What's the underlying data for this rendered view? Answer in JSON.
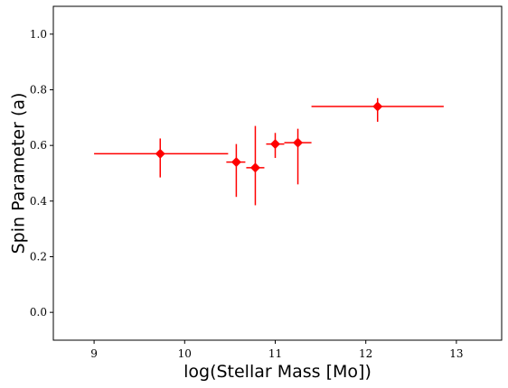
{
  "chart_data": {
    "type": "scatter",
    "title": "",
    "xlabel": "log(Stellar Mass [Mo])",
    "ylabel": "Spin Parameter (a)",
    "xlim": [
      8.55,
      13.5
    ],
    "ylim": [
      -0.1,
      1.1
    ],
    "x_ticks": [
      9,
      10,
      11,
      12,
      13
    ],
    "y_ticks": [
      0.0,
      0.2,
      0.4,
      0.6,
      0.8,
      1.0
    ],
    "x_tick_labels": [
      "9",
      "10",
      "11",
      "12",
      "13"
    ],
    "y_tick_labels": [
      "0.0",
      "0.2",
      "0.4",
      "0.6",
      "0.8",
      "1.0"
    ],
    "grid": false,
    "legend": "none",
    "color": "#ff0000",
    "marker": "diamond",
    "points": [
      {
        "x": 9.73,
        "y": 0.57,
        "x_err": [
          0.73,
          0.75
        ],
        "y_err": [
          0.085,
          0.055
        ]
      },
      {
        "x": 10.57,
        "y": 0.54,
        "x_err": [
          0.11,
          0.1
        ],
        "y_err": [
          0.125,
          0.065
        ]
      },
      {
        "x": 10.78,
        "y": 0.52,
        "x_err": [
          0.1,
          0.1
        ],
        "y_err": [
          0.135,
          0.15
        ]
      },
      {
        "x": 11.0,
        "y": 0.605,
        "x_err": [
          0.1,
          0.1
        ],
        "y_err": [
          0.05,
          0.04
        ]
      },
      {
        "x": 11.25,
        "y": 0.61,
        "x_err": [
          0.15,
          0.15
        ],
        "y_err": [
          0.15,
          0.05
        ]
      },
      {
        "x": 12.13,
        "y": 0.74,
        "x_err": [
          0.73,
          0.73
        ],
        "y_err": [
          0.055,
          0.03
        ]
      }
    ]
  }
}
